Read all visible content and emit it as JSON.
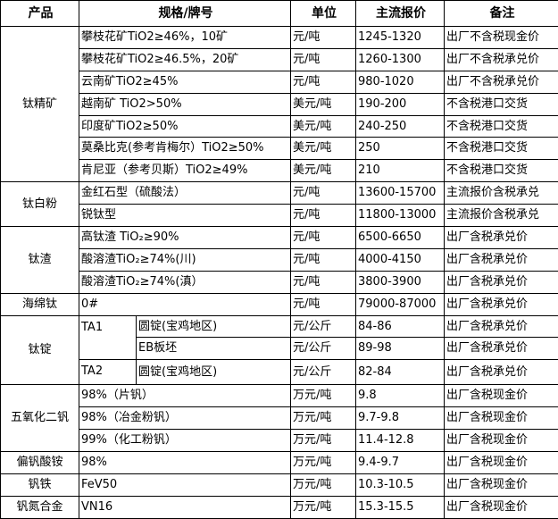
{
  "headers": [
    "产品",
    "规格/牌号",
    "单位",
    "主流报价",
    "备注"
  ],
  "groups": [
    {
      "product": "钛精矿",
      "rows": [
        {
          "spec": "攀枝花矿TiO2≥46%，10矿",
          "unit": "元/吨",
          "price": "1245-1320",
          "note": "出厂不含税现金价"
        },
        {
          "spec": "攀枝花矿TiO2≥46.5%，20矿",
          "unit": "元/吨",
          "price": "1260-1300",
          "note": "出厂不含税承兑价"
        },
        {
          "spec": "云南矿TiO2≥45%",
          "unit": "元/吨",
          "price": "980-1020",
          "note": "出厂不含税承兑价"
        },
        {
          "spec": "越南矿 TiO2>50%",
          "unit": "美元/吨",
          "price": "190-200",
          "note": "不含税港口交货"
        },
        {
          "spec": "印度矿TiO2≥50%",
          "unit": "美元/吨",
          "price": "240-250",
          "note": "不含税港口交货"
        },
        {
          "spec": "莫桑比克(参考肯梅尔）TiO2≥50%",
          "unit": "美元/吨",
          "price": "250",
          "note": "不含税港口交货"
        },
        {
          "spec": "肯尼亚（参考贝斯）TiO2≥49%",
          "unit": "美元/吨",
          "price": "210",
          "note": "不含税港口交货"
        }
      ]
    },
    {
      "product": "钛白粉",
      "rows": [
        {
          "spec": "金红石型（硫酸法）",
          "unit": "元/吨",
          "price": "13600-15700",
          "note": "主流报价含税承兑"
        },
        {
          "spec": "锐钛型",
          "unit": "元/吨",
          "price": "11800-13000",
          "note": "主流报价含税承兑"
        }
      ]
    },
    {
      "product": "钛渣",
      "rows": [
        {
          "spec": "高钛渣 TiO₂≥90%",
          "unit": "元/吨",
          "price": "6500-6650",
          "note": "出厂含税承兑价"
        },
        {
          "spec": "酸溶渣TiO₂≥74%(川)",
          "unit": "元/吨",
          "price": "4000-4150",
          "note": "出厂含税承兑价"
        },
        {
          "spec": "酸溶渣TiO₂≥74%(滇）",
          "unit": "元/吨",
          "price": "3800-3900",
          "note": "出厂含税承兑价"
        }
      ]
    },
    {
      "product": "海绵钛",
      "rows": [
        {
          "spec": "0#",
          "unit": "元/吨",
          "price": "79000-87000",
          "note": "出厂含税承兑价"
        }
      ]
    },
    {
      "product": "钛锭",
      "rows": [
        {
          "grade": "TA1",
          "grade_span": 2,
          "spec": "圆锭(宝鸡地区)",
          "unit": "元/公斤",
          "price": "84-86",
          "note": "出厂含税承兑价"
        },
        {
          "spec": "EB板坯",
          "unit": "元/公斤",
          "price": "89-98",
          "note": "出厂含税承兑价"
        },
        {
          "grade": "TA2",
          "grade_span": 1,
          "spec": "圆锭(宝鸡地区)",
          "unit": "元/公斤",
          "price": "82-84",
          "note": "出厂含税承兑价"
        }
      ]
    },
    {
      "product": "五氧化二钒",
      "rows": [
        {
          "spec": "98%（片钒）",
          "unit": "万元/吨",
          "price": "9.8",
          "note": "出厂含税现金价"
        },
        {
          "spec": "98%（冶金粉钒）",
          "unit": "万元/吨",
          "price": "9.7-9.8",
          "note": "出厂含税现金价"
        },
        {
          "spec": "99%（化工粉钒）",
          "unit": "万元/吨",
          "price": "11.4-12.8",
          "note": "出厂含税现金价"
        }
      ]
    },
    {
      "product": "偏钒酸铵",
      "rows": [
        {
          "spec": "98%",
          "unit": "万元/吨",
          "price": "9.4-9.7",
          "note": "出厂含税现金价"
        }
      ]
    },
    {
      "product": "钒铁",
      "rows": [
        {
          "spec": "FeV50",
          "unit": "万元/吨",
          "price": "10.3-10.5",
          "note": "出厂含税现金价"
        }
      ]
    },
    {
      "product": "钒氮合金",
      "rows": [
        {
          "spec": "VN16",
          "unit": "万元/吨",
          "price": "15.3-15.5",
          "note": "出厂含税现金价"
        }
      ]
    }
  ]
}
